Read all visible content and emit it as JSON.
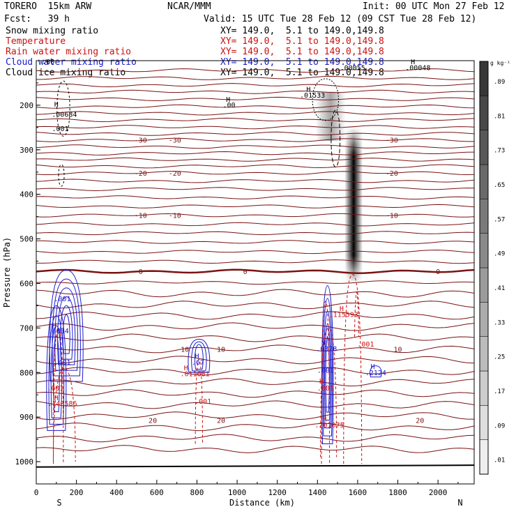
{
  "header": {
    "model": "TORERO  15km ARW",
    "center": "NCAR/MMM",
    "init": "Init: 00 UTC Mon 27 Feb 12",
    "fcst": "Fcst:   39 h",
    "valid": "Valid: 15 UTC Tue 28 Feb 12 (09 CST Tue 28 Feb 12)"
  },
  "legend": [
    {
      "label": "Snow mixing ratio",
      "xy": "XY= 149.0,  5.1 to 149.0,149.8",
      "color": "#000000"
    },
    {
      "label": "Temperature",
      "xy": "XY= 149.0,  5.1 to 149.0,149.8",
      "color": "#cc1111"
    },
    {
      "label": "Rain water mixing ratio",
      "xy": "XY= 149.0,  5.1 to 149.0,149.8",
      "color": "#cc1111"
    },
    {
      "label": "Cloud water mixing ratio",
      "xy": "XY= 149.0,  5.1 to 149.0,149.8",
      "color": "#1a1acc"
    },
    {
      "label": "Cloud ice mixing ratio",
      "xy": "XY= 149.0,  5.1 to 149.0,149.8",
      "color": "#000000"
    }
  ],
  "chart_data": {
    "type": "cross-section",
    "xlabel": "Distance (km)",
    "ylabel": "Pressure (hPa)",
    "xlim": [
      0,
      2180
    ],
    "ylim": [
      1050,
      100
    ],
    "xticks": [
      0,
      200,
      400,
      600,
      800,
      1000,
      1200,
      1400,
      1600,
      1800,
      2000
    ],
    "yticks": [
      200,
      300,
      400,
      500,
      600,
      700,
      800,
      900,
      1000
    ],
    "endpoints": {
      "left": "S",
      "right": "N"
    },
    "colorbar": {
      "unit": "g kg⁻¹",
      "ticks": [
        ".01",
        ".09",
        ".17",
        ".25",
        ".33",
        ".41",
        ".49",
        ".57",
        ".65",
        ".73",
        ".81",
        ".89"
      ]
    },
    "temperature_contours": [
      {
        "label": "-30",
        "p": 278
      },
      {
        "label": "-20",
        "p": 352
      },
      {
        "label": "-10",
        "p": 447
      },
      {
        "label": "0",
        "p": 573
      },
      {
        "label": "10",
        "p": 747
      },
      {
        "label": "20",
        "p": 907
      }
    ],
    "extrema_labels": [
      {
        "text": "H",
        "x": 100,
        "p": 203,
        "color": "black"
      },
      {
        "text": ".00684",
        "x": 140,
        "p": 226,
        "color": "black"
      },
      {
        "text": ".001",
        "x": 120,
        "p": 258,
        "color": "black"
      },
      {
        "text": "H",
        "x": 955,
        "p": 192,
        "color": "black"
      },
      {
        "text": ".00",
        "x": 960,
        "p": 205,
        "color": "black"
      },
      {
        "text": "H",
        "x": 1355,
        "p": 170,
        "color": "black"
      },
      {
        "text": ".01533",
        "x": 1375,
        "p": 183,
        "color": "black"
      },
      {
        "text": "H",
        "x": 1875,
        "p": 108,
        "color": "black"
      },
      {
        "text": ".00048",
        "x": 1900,
        "p": 121,
        "color": "black"
      },
      {
        "text": ".00055",
        "x": 1575,
        "p": 121,
        "color": "black"
      },
      {
        "text": ".00",
        "x": 60,
        "p": 108,
        "color": "black"
      },
      {
        "text": ".001",
        "x": 130,
        "p": 640,
        "color": "blue"
      },
      {
        "text": "H",
        "x": 90,
        "p": 700,
        "color": "blue"
      },
      {
        "text": ".6834",
        "x": 110,
        "p": 712,
        "color": "blue"
      },
      {
        "text": ".401",
        "x": 130,
        "p": 782,
        "color": "blue"
      },
      {
        "text": "H",
        "x": 800,
        "p": 768,
        "color": "blue"
      },
      {
        "text": ".67",
        "x": 805,
        "p": 782,
        "color": "blue"
      },
      {
        "text": "H",
        "x": 1430,
        "p": 738,
        "color": "blue"
      },
      {
        "text": ".6328",
        "x": 1445,
        "p": 752,
        "color": "blue"
      },
      {
        "text": ".001",
        "x": 1440,
        "p": 800,
        "color": "blue"
      },
      {
        "text": "H",
        "x": 1675,
        "p": 792,
        "color": "blue"
      },
      {
        "text": ".2124",
        "x": 1690,
        "p": 806,
        "color": "blue"
      },
      {
        "text": "H",
        "x": 1520,
        "p": 662,
        "color": "red"
      },
      {
        "text": ".115593",
        "x": 1530,
        "p": 675,
        "color": "red"
      },
      {
        "text": ".001",
        "x": 1640,
        "p": 742,
        "color": "red"
      },
      {
        "text": "H",
        "x": 745,
        "p": 795,
        "color": "red"
      },
      {
        "text": ".011681",
        "x": 790,
        "p": 808,
        "color": "red"
      },
      {
        "text": ".001",
        "x": 830,
        "p": 870,
        "color": "red"
      },
      {
        "text": ".001",
        "x": 95,
        "p": 840,
        "color": "red"
      },
      {
        "text": "H",
        "x": 100,
        "p": 862,
        "color": "red"
      },
      {
        "text": ".140586",
        "x": 130,
        "p": 875,
        "color": "red"
      },
      {
        "text": "H",
        "x": 1420,
        "p": 825,
        "color": "red"
      },
      {
        "text": ".001",
        "x": 1440,
        "p": 840,
        "color": "red"
      },
      {
        "text": "H",
        "x": 1435,
        "p": 910,
        "color": "red"
      },
      {
        "text": ".201075",
        "x": 1460,
        "p": 923,
        "color": "red"
      }
    ]
  }
}
